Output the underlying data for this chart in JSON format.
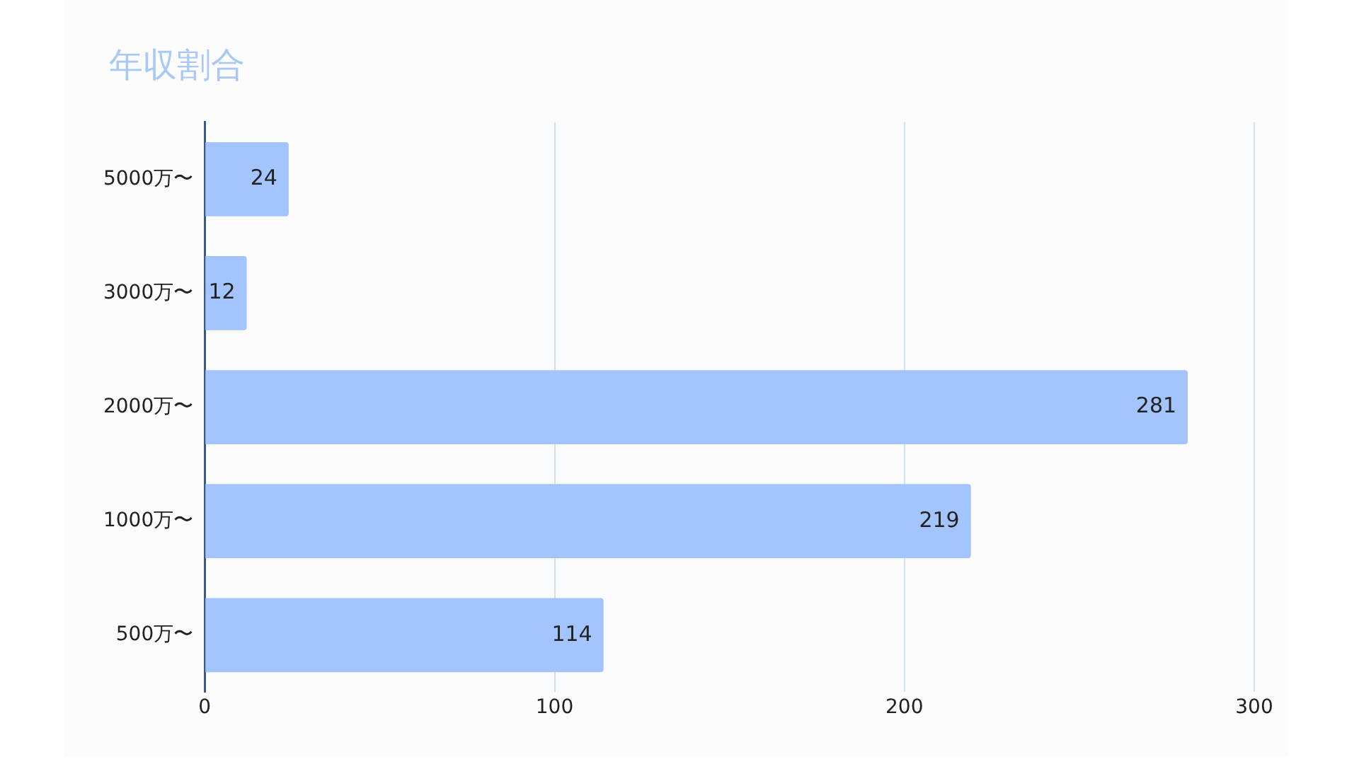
{
  "chart_data": {
    "type": "bar",
    "orientation": "horizontal",
    "title": "年収割合",
    "categories": [
      "5000万〜",
      "3000万〜",
      "2000万〜",
      "1000万〜",
      "500万〜"
    ],
    "values": [
      24,
      12,
      281,
      219,
      114
    ],
    "color": "#a3c4fc",
    "xlim": [
      0,
      300
    ],
    "xticks": [
      0,
      100,
      200,
      300
    ],
    "grid": "x",
    "data_labels": true
  }
}
